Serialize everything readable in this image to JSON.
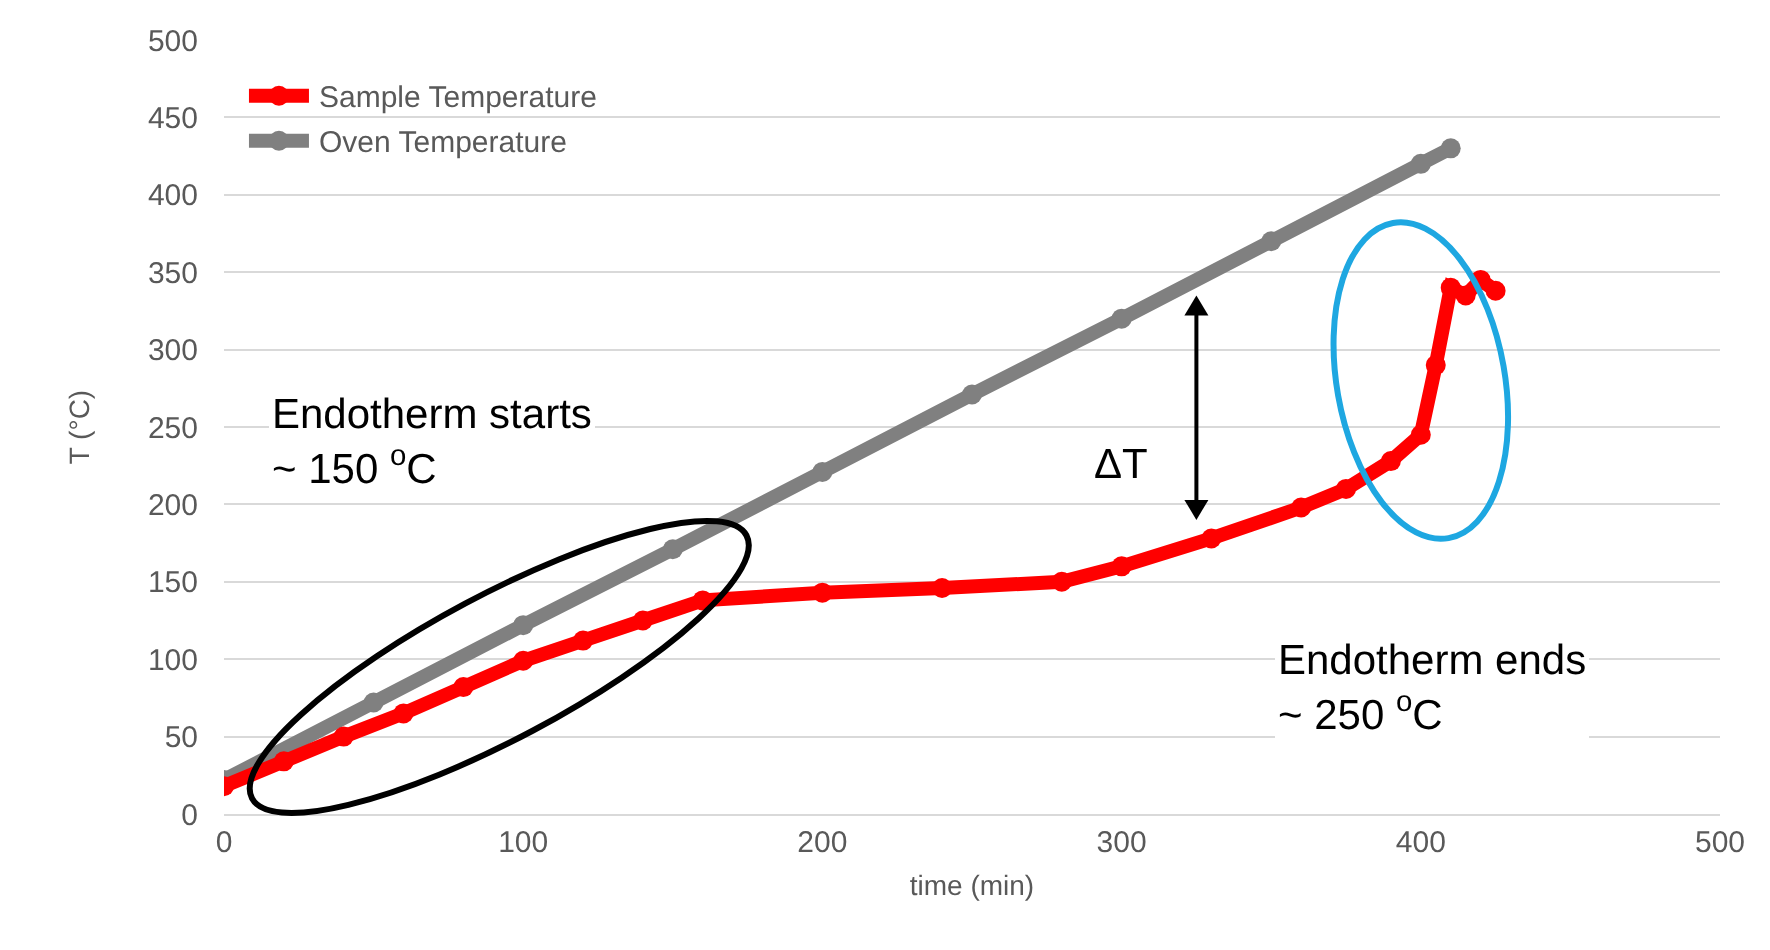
{
  "chart_data": {
    "type": "line",
    "xlabel": "time (min)",
    "ylabel": "T (°C)",
    "xlim": [
      0,
      500
    ],
    "xticks": [
      0,
      100,
      200,
      300,
      400,
      500
    ],
    "ylim": [
      0,
      500
    ],
    "yticks": [
      0,
      50,
      100,
      150,
      200,
      250,
      300,
      350,
      400,
      450,
      500
    ],
    "grid": "y",
    "legend": "top left",
    "marker": "circle",
    "line_style": "solid",
    "series": [
      {
        "name": "Sample Temperature",
        "color": "#ff0000",
        "x": [
          0,
          20,
          40,
          60,
          80,
          100,
          120,
          140,
          160,
          200,
          240,
          280,
          300,
          330,
          360,
          375,
          390,
          400,
          405,
          410,
          415,
          420,
          425
        ],
        "values": [
          18,
          34,
          50,
          65,
          82,
          99,
          112,
          125,
          138,
          143,
          146,
          150,
          160,
          178,
          198,
          210,
          228,
          245,
          290,
          340,
          335,
          345,
          338
        ]
      },
      {
        "name": "Oven Temperature",
        "color": "#808080",
        "x": [
          0,
          50,
          100,
          150,
          200,
          250,
          300,
          350,
          400,
          410
        ],
        "values": [
          22,
          72,
          122,
          171,
          221,
          271,
          320,
          370,
          420,
          430
        ]
      }
    ],
    "annotations": [
      "Endotherm starts\n~ 150 $^{o}$C",
      "ΔT",
      "Endotherm ends\n~ 250 $^{o}$C"
    ]
  }
}
